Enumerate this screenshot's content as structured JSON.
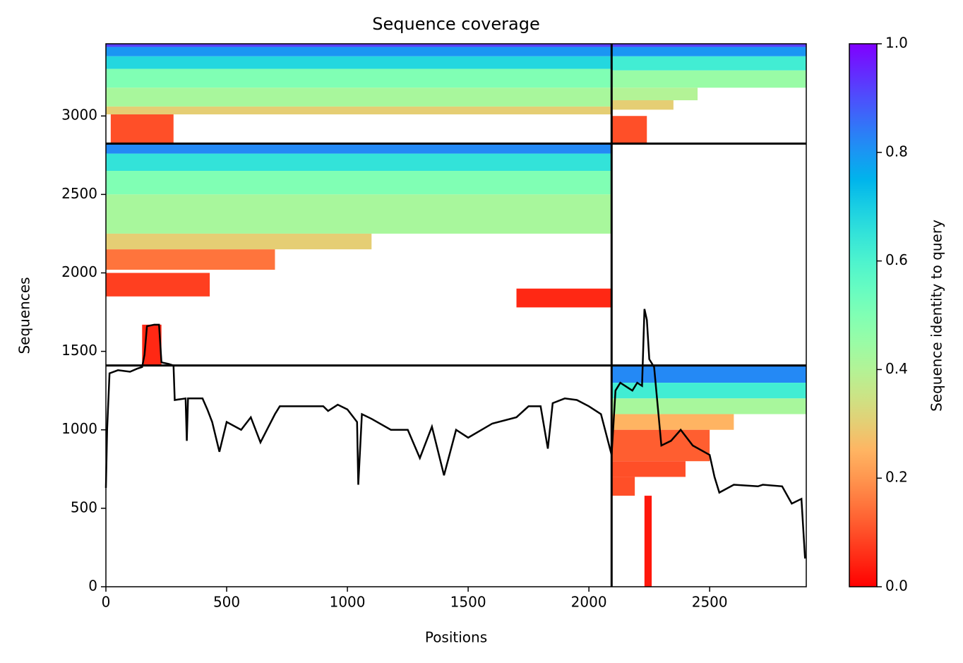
{
  "chart_data": {
    "type": "coverage",
    "title": "Sequence coverage",
    "xlabel": "Positions",
    "ylabel": "Sequences",
    "xlim": [
      0,
      2900
    ],
    "xticks": [
      0,
      500,
      1000,
      1500,
      2000,
      2500
    ],
    "ylim": [
      0,
      3460
    ],
    "yticks": [
      0,
      500,
      1000,
      1500,
      2000,
      2500,
      3000
    ],
    "colorbar": {
      "label": "Sequence identity to query",
      "colormap": "rainbow_r",
      "lim": [
        0,
        1
      ],
      "ticks": [
        {
          "value": 0,
          "label": "0.0"
        },
        {
          "value": 0.2,
          "label": "0.2"
        },
        {
          "value": 0.4,
          "label": "0.4"
        },
        {
          "value": 0.6,
          "label": "0.6"
        },
        {
          "value": 0.8,
          "label": "0.8"
        },
        {
          "value": 1,
          "label": "1.0"
        }
      ]
    },
    "boundaries": {
      "x": [
        2094
      ],
      "y": [
        1410,
        2824
      ]
    },
    "blocks": [
      {
        "x": [
          0,
          2094
        ],
        "y": [
          3440,
          3460
        ],
        "identity": 0.92
      },
      {
        "x": [
          0,
          2094
        ],
        "y": [
          3380,
          3440
        ],
        "identity": 0.8
      },
      {
        "x": [
          0,
          2094
        ],
        "y": [
          3300,
          3380
        ],
        "identity": 0.68
      },
      {
        "x": [
          0,
          2094
        ],
        "y": [
          3180,
          3300
        ],
        "identity": 0.5
      },
      {
        "x": [
          0,
          2094
        ],
        "y": [
          3060,
          3180
        ],
        "identity": 0.42
      },
      {
        "x": [
          0,
          2094
        ],
        "y": [
          3010,
          3060
        ],
        "identity": 0.3
      },
      {
        "x": [
          20,
          280
        ],
        "y": [
          2824,
          3010
        ],
        "identity": 0.1
      },
      {
        "x": [
          2094,
          2900
        ],
        "y": [
          3440,
          3460
        ],
        "identity": 0.92
      },
      {
        "x": [
          2094,
          2900
        ],
        "y": [
          3380,
          3440
        ],
        "identity": 0.8
      },
      {
        "x": [
          2094,
          2900
        ],
        "y": [
          3290,
          3380
        ],
        "identity": 0.62
      },
      {
        "x": [
          2094,
          2900
        ],
        "y": [
          3180,
          3290
        ],
        "identity": 0.45
      },
      {
        "x": [
          2094,
          2450
        ],
        "y": [
          3100,
          3180
        ],
        "identity": 0.4
      },
      {
        "x": [
          2094,
          2350
        ],
        "y": [
          3040,
          3100
        ],
        "identity": 0.3
      },
      {
        "x": [
          2094,
          2240
        ],
        "y": [
          2824,
          3000
        ],
        "identity": 0.1
      },
      {
        "x": [
          0,
          2094
        ],
        "y": [
          2760,
          2824
        ],
        "identity": 0.82
      },
      {
        "x": [
          0,
          2094
        ],
        "y": [
          2650,
          2760
        ],
        "identity": 0.65
      },
      {
        "x": [
          0,
          2094
        ],
        "y": [
          2500,
          2650
        ],
        "identity": 0.5
      },
      {
        "x": [
          0,
          2094
        ],
        "y": [
          2250,
          2500
        ],
        "identity": 0.42
      },
      {
        "x": [
          0,
          1100
        ],
        "y": [
          2150,
          2250
        ],
        "identity": 0.3
      },
      {
        "x": [
          0,
          700
        ],
        "y": [
          2020,
          2150
        ],
        "identity": 0.15
      },
      {
        "x": [
          0,
          430
        ],
        "y": [
          1850,
          2000
        ],
        "identity": 0.08
      },
      {
        "x": [
          1700,
          2094
        ],
        "y": [
          1780,
          1900
        ],
        "identity": 0.05
      },
      {
        "x": [
          150,
          230
        ],
        "y": [
          1410,
          1670
        ],
        "identity": 0.05
      },
      {
        "x": [
          2094,
          2900
        ],
        "y": [
          1300,
          1410
        ],
        "identity": 0.82
      },
      {
        "x": [
          2094,
          2900
        ],
        "y": [
          1200,
          1300
        ],
        "identity": 0.62
      },
      {
        "x": [
          2094,
          2900
        ],
        "y": [
          1100,
          1200
        ],
        "identity": 0.42
      },
      {
        "x": [
          2094,
          2600
        ],
        "y": [
          1000,
          1100
        ],
        "identity": 0.25
      },
      {
        "x": [
          2094,
          2500
        ],
        "y": [
          800,
          1000
        ],
        "identity": 0.12
      },
      {
        "x": [
          2094,
          2400
        ],
        "y": [
          700,
          800
        ],
        "identity": 0.1
      },
      {
        "x": [
          2094,
          2190
        ],
        "y": [
          580,
          700
        ],
        "identity": 0.1
      },
      {
        "x": [
          2230,
          2260
        ],
        "y": [
          0,
          580
        ],
        "identity": 0.03
      }
    ],
    "coverage": {
      "x": [
        0,
        5,
        15,
        50,
        100,
        130,
        150,
        160,
        170,
        200,
        220,
        230,
        260,
        280,
        285,
        330,
        335,
        340,
        400,
        420,
        440,
        470,
        500,
        560,
        600,
        640,
        700,
        720,
        900,
        920,
        960,
        1000,
        1040,
        1045,
        1060,
        1100,
        1180,
        1250,
        1300,
        1350,
        1400,
        1450,
        1500,
        1600,
        1700,
        1750,
        1800,
        1830,
        1850,
        1900,
        1950,
        2000,
        2050,
        2094,
        2110,
        2130,
        2180,
        2200,
        2220,
        2230,
        2240,
        2250,
        2270,
        2300,
        2340,
        2380,
        2430,
        2500,
        2520,
        2540,
        2600,
        2700,
        2720,
        2800,
        2840,
        2880,
        2895
      ],
      "values": [
        630,
        1000,
        1360,
        1380,
        1370,
        1390,
        1400,
        1480,
        1660,
        1670,
        1670,
        1430,
        1420,
        1410,
        1190,
        1200,
        930,
        1200,
        1200,
        1130,
        1050,
        860,
        1050,
        1000,
        1080,
        920,
        1100,
        1150,
        1150,
        1120,
        1160,
        1130,
        1050,
        650,
        1100,
        1070,
        1000,
        1000,
        820,
        1020,
        710,
        1000,
        950,
        1040,
        1080,
        1150,
        1150,
        880,
        1170,
        1200,
        1190,
        1150,
        1100,
        840,
        1250,
        1300,
        1250,
        1300,
        1280,
        1770,
        1700,
        1450,
        1400,
        900,
        930,
        1000,
        900,
        840,
        700,
        600,
        650,
        640,
        650,
        640,
        530,
        560,
        180
      ]
    }
  }
}
